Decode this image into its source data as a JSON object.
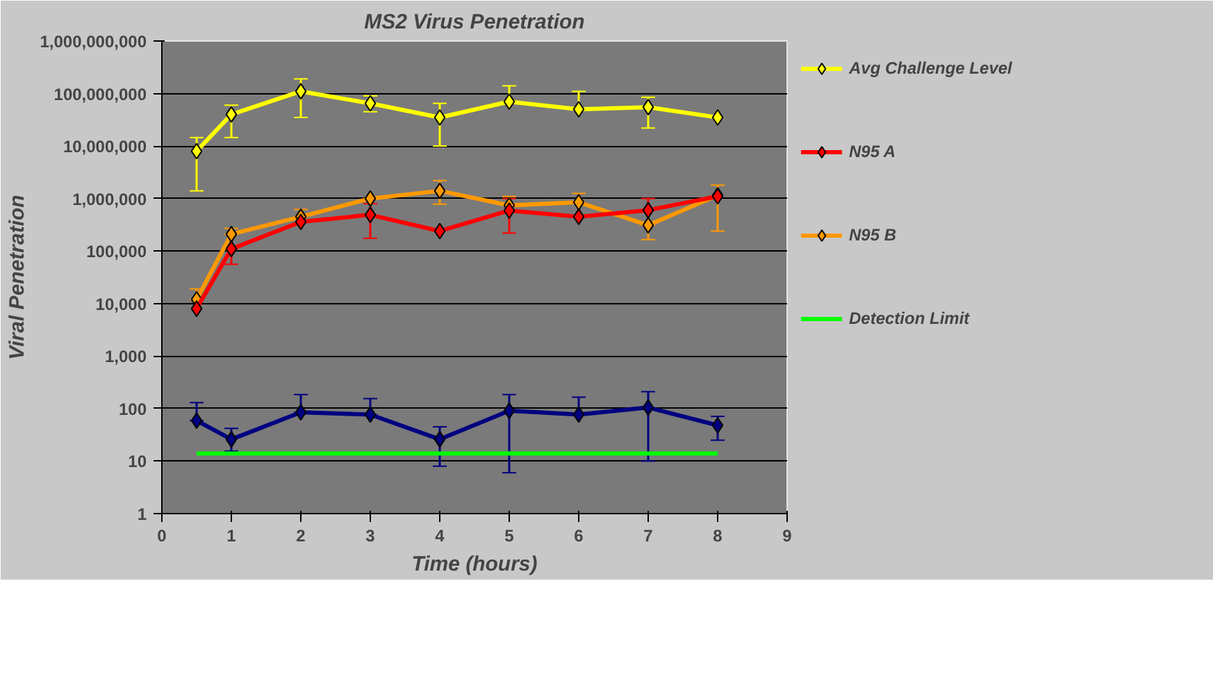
{
  "chart_data": {
    "type": "line",
    "title": "MS2 Virus Penetration",
    "xlabel": "Time (hours)",
    "ylabel": "Viral Penetration",
    "x": [
      0.5,
      1,
      2,
      3,
      4,
      5,
      6,
      7,
      8
    ],
    "log": "y",
    "grid": "y",
    "legend": "right",
    "marker": "diamond",
    "xlim": [
      0,
      9
    ],
    "xticks": [
      0,
      1,
      2,
      3,
      4,
      5,
      6,
      7,
      8,
      9
    ],
    "ylim": [
      1,
      1000000000
    ],
    "yticks": [
      {
        "value": 1,
        "label": "1"
      },
      {
        "value": 10,
        "label": "10"
      },
      {
        "value": 100,
        "label": "100"
      },
      {
        "value": 1000,
        "label": "1,000"
      },
      {
        "value": 10000,
        "label": "10,000"
      },
      {
        "value": 100000,
        "label": "100,000"
      },
      {
        "value": 1000000,
        "label": "1,000,000"
      },
      {
        "value": 10000000,
        "label": "10,000,000"
      },
      {
        "value": 100000000,
        "label": "100,000,000"
      },
      {
        "value": 1000000000,
        "label": "1,000,000,000"
      }
    ],
    "series": [
      {
        "name": "Avg Challenge Level",
        "color": "#ffff00",
        "values": [
          8000000,
          40000000,
          110000000,
          65000000,
          35000000,
          70000000,
          50000000,
          55000000,
          35000000
        ],
        "errors": [
          [
            1400000,
            14500000
          ],
          [
            14500000,
            60000000
          ],
          [
            35000000,
            190000000
          ],
          [
            45000000,
            90000000
          ],
          [
            10000000,
            65000000
          ],
          [
            70000000,
            140000000
          ],
          [
            50000000,
            110000000
          ],
          [
            22000000,
            85000000
          ],
          null
        ]
      },
      {
        "name": "N95 A",
        "color": "#ff0000",
        "values": [
          8000,
          110000,
          360000,
          490000,
          240000,
          590000,
          450000,
          600000,
          1100000
        ],
        "errors": [
          null,
          [
            56000,
            110000
          ],
          null,
          [
            175000,
            800000
          ],
          null,
          [
            220000,
            1000000
          ],
          null,
          [
            600000,
            1000000
          ],
          null
        ]
      },
      {
        "name": "N95 B",
        "color": "#ff9900",
        "values": [
          12000,
          210000,
          450000,
          1000000,
          1400000,
          740000,
          850000,
          310000,
          1150000
        ],
        "errors": [
          [
            12000,
            19000
          ],
          [
            210000,
            270000
          ],
          [
            450000,
            620000
          ],
          null,
          [
            780000,
            2200000
          ],
          [
            740000,
            1100000
          ],
          [
            850000,
            1250000
          ],
          [
            165000,
            310000
          ],
          [
            240000,
            1800000
          ]
        ]
      },
      {
        "color": "#000080",
        "values": [
          59,
          26,
          85,
          77,
          26,
          91,
          77,
          105,
          48
        ],
        "errors": [
          [
            59,
            130
          ],
          [
            15.5,
            42
          ],
          [
            85,
            185
          ],
          [
            77,
            155
          ],
          [
            8,
            45
          ],
          [
            6,
            185
          ],
          [
            77,
            165
          ],
          [
            10,
            210
          ],
          [
            25,
            71
          ]
        ]
      },
      {
        "name": "Detection Limit",
        "color": "#00ff00",
        "marker": "none",
        "x": [
          0.5,
          8
        ],
        "values": [
          14,
          14
        ]
      }
    ]
  }
}
